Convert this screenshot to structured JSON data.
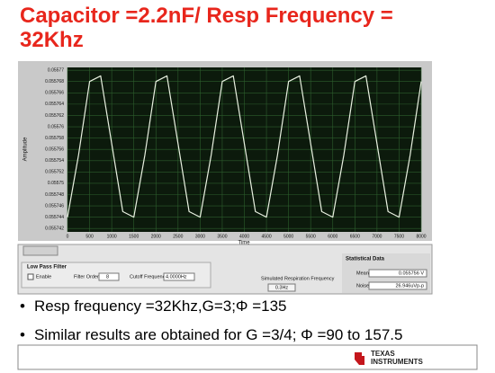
{
  "title": "Capacitor =2.2nF/ Resp Frequency = 32Khz",
  "chart_data": {
    "type": "line",
    "y_label": "Amplitude",
    "x_label": "Time",
    "color": "#e8f0e0",
    "grid": true,
    "x": [
      0,
      250,
      500,
      750,
      1000,
      1250,
      1500,
      1750,
      2000,
      2250,
      2500,
      2750,
      3000,
      3250,
      3500,
      3750,
      4000,
      4250,
      4500,
      4750,
      5000,
      5250,
      5500,
      5750,
      6000,
      6250,
      6500,
      6750,
      7000,
      7250,
      7500,
      7750,
      8000
    ],
    "values": [
      0.055744,
      0.055755,
      0.055768,
      0.055769,
      0.055757,
      0.055745,
      0.055744,
      0.055755,
      0.055768,
      0.055769,
      0.055757,
      0.055745,
      0.055744,
      0.055755,
      0.055768,
      0.055769,
      0.055757,
      0.055745,
      0.055744,
      0.055755,
      0.055768,
      0.055769,
      0.055757,
      0.055745,
      0.055744,
      0.055755,
      0.055768,
      0.055769,
      0.055757,
      0.055745,
      0.055744,
      0.055755,
      0.055768
    ],
    "xlim": [
      0,
      8000
    ],
    "xticks": [
      0,
      500,
      1000,
      1500,
      2000,
      2500,
      3000,
      3500,
      4000,
      4500,
      5000,
      5500,
      6000,
      6500,
      7000,
      7500,
      8000
    ],
    "ylim": [
      0.0557414,
      0.0557705
    ],
    "yticks": [
      0.055742,
      0.055744,
      0.055746,
      0.055748,
      0.05575,
      0.055752,
      0.055754,
      0.055756,
      0.055758,
      0.05576,
      0.055762,
      0.055764,
      0.055766,
      0.055768,
      0.05577
    ]
  },
  "panel": {
    "filter_title": "Low Pass Filter",
    "enable": "Enable",
    "filter_order_label": "Filter Order",
    "filter_order": "8",
    "cutoff_label": "Cutoff Frequency",
    "cutoff": "4.0000Hz",
    "resp_label": "Simulated Respiration Frequency",
    "resp": "0.3Hz",
    "stats_title": "Statistical Data",
    "mean_label": "Mean",
    "mean": "0.055756 V",
    "noise_label": "Noise",
    "noise": "26.946uVp-p"
  },
  "bullets": [
    "Resp frequency =32Khz,G=3;Φ =135",
    "Similar results are obtained for G =3/4; Φ =90 to 157.5"
  ],
  "footer": {
    "brand": "TEXAS INSTRUMENTS"
  }
}
